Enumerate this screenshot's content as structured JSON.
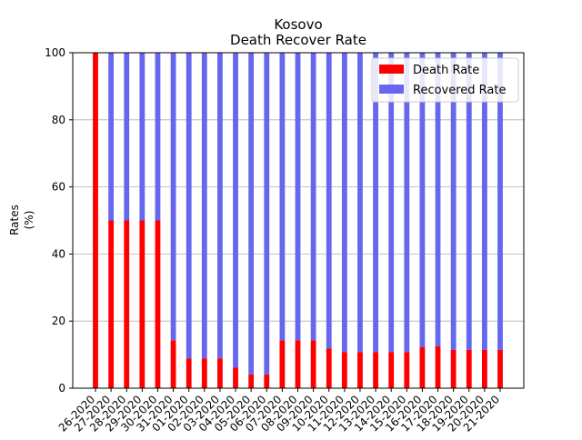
{
  "chart_data": {
    "type": "bar",
    "stacked": true,
    "title": "Kosovo",
    "subtitle": "Death Recover Rate",
    "xlabel": "",
    "ylabel": "Rates\n(%)",
    "ylim": [
      0,
      100
    ],
    "yticks": [
      0,
      20,
      40,
      60,
      80,
      100
    ],
    "grid": "y",
    "legend_position": "top-right",
    "x_tick_labels_visible": [
      "26-2020",
      "27-2020",
      "28-2020",
      "29-2020",
      "30-2020",
      "31-2020",
      "01-2020",
      "02-2020",
      "03-2020",
      "04-2020",
      "05-2020",
      "06-2020",
      "07-2020",
      "08-2020",
      "09-2020",
      "10-2020",
      "11-2020",
      "12-2020",
      "13-2020",
      "14-2020",
      "15-2020",
      "16-2020",
      "17-2020",
      "18-2020",
      "19-2020",
      "20-2020",
      "21-2020"
    ],
    "series": [
      {
        "name": "Death Rate",
        "color": "#ff0000",
        "values": [
          100,
          50,
          50,
          50,
          50,
          14.3,
          8.9,
          8.9,
          8.9,
          6.1,
          4.1,
          4.1,
          14.3,
          14.3,
          14.3,
          11.8,
          10.8,
          10.8,
          10.8,
          10.8,
          10.8,
          12.2,
          12.5,
          11.4,
          11.4,
          11.4,
          11.4
        ]
      },
      {
        "name": "Recovered Rate",
        "color": "#6666ee",
        "values": [
          0,
          50,
          50,
          50,
          50,
          85.7,
          91.1,
          91.1,
          91.1,
          93.9,
          95.9,
          95.9,
          85.7,
          85.7,
          85.7,
          88.2,
          89.2,
          89.2,
          89.2,
          89.2,
          89.2,
          87.8,
          87.5,
          88.6,
          88.6,
          88.6,
          88.6
        ]
      }
    ]
  }
}
